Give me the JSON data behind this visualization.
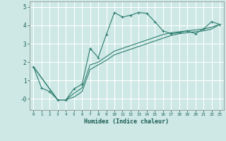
{
  "background_color": "#cde8e5",
  "grid_color": "#ffffff",
  "line_color": "#2d7d6e",
  "xlabel": "Humidex (Indice chaleur)",
  "ylim": [
    -0.6,
    5.3
  ],
  "xlim": [
    -0.5,
    23.5
  ],
  "yticks": [
    0,
    1,
    2,
    3,
    4,
    5
  ],
  "ytick_labels": [
    "-0",
    "1",
    "2",
    "3",
    "4",
    "5"
  ],
  "xticks": [
    0,
    1,
    2,
    3,
    4,
    5,
    6,
    7,
    8,
    9,
    10,
    11,
    12,
    13,
    14,
    15,
    16,
    17,
    18,
    19,
    20,
    21,
    22,
    23
  ],
  "curve1_x": [
    0,
    1,
    2,
    3,
    4,
    5,
    6,
    7,
    8,
    9,
    10,
    11,
    12,
    13,
    14,
    15,
    16,
    17,
    18,
    19,
    20,
    21,
    22,
    23
  ],
  "curve1_y": [
    1.75,
    0.6,
    0.4,
    -0.05,
    -0.05,
    0.55,
    0.8,
    2.75,
    2.25,
    3.5,
    4.7,
    4.45,
    4.55,
    4.7,
    4.65,
    4.2,
    3.7,
    3.55,
    3.6,
    3.7,
    3.55,
    3.8,
    4.2,
    4.05
  ],
  "curve2_x": [
    0,
    3,
    4,
    5,
    6,
    7,
    8,
    9,
    10,
    11,
    12,
    13,
    14,
    15,
    16,
    17,
    18,
    19,
    20,
    21,
    22,
    23
  ],
  "curve2_y": [
    1.75,
    -0.05,
    -0.05,
    0.3,
    0.6,
    1.85,
    2.0,
    2.3,
    2.6,
    2.75,
    2.9,
    3.05,
    3.2,
    3.35,
    3.5,
    3.6,
    3.65,
    3.7,
    3.75,
    3.8,
    3.9,
    4.05
  ],
  "curve3_x": [
    0,
    3,
    4,
    5,
    6,
    7,
    8,
    9,
    10,
    11,
    12,
    13,
    14,
    15,
    16,
    17,
    18,
    19,
    20,
    21,
    22,
    23
  ],
  "curve3_y": [
    1.75,
    -0.05,
    -0.05,
    0.1,
    0.4,
    1.6,
    1.85,
    2.1,
    2.4,
    2.55,
    2.7,
    2.85,
    3.0,
    3.15,
    3.3,
    3.45,
    3.55,
    3.6,
    3.65,
    3.7,
    3.8,
    4.05
  ]
}
